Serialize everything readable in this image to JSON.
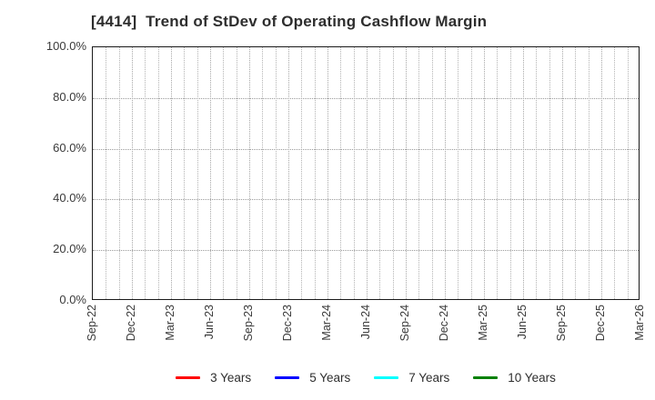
{
  "title": "[4414]  Trend of StDev of Operating Cashflow Margin",
  "chart_data": {
    "type": "line",
    "title": "[4414]  Trend of StDev of Operating Cashflow Margin",
    "xlabel": "",
    "ylabel": "",
    "ylim": [
      0,
      100
    ],
    "y_unit": "%",
    "y_ticks": [
      {
        "value": 0,
        "label": "0.0%"
      },
      {
        "value": 20,
        "label": "20.0%"
      },
      {
        "value": 40,
        "label": "40.0%"
      },
      {
        "value": 60,
        "label": "60.0%"
      },
      {
        "value": 80,
        "label": "80.0%"
      },
      {
        "value": 100,
        "label": "100.0%"
      }
    ],
    "x_tick_labels": [
      "Sep-22",
      "Dec-22",
      "Mar-23",
      "Jun-23",
      "Sep-23",
      "Dec-23",
      "Mar-24",
      "Jun-24",
      "Sep-24",
      "Dec-24",
      "Mar-25",
      "Jun-25",
      "Sep-25",
      "Dec-25",
      "Mar-26"
    ],
    "x_minor_gridlines": "monthly",
    "months_per_tick": 3,
    "grid": "dotted",
    "legend_position": "bottom",
    "series": [
      {
        "name": "3 Years",
        "color": "#ff0000",
        "values": []
      },
      {
        "name": "5 Years",
        "color": "#0000ff",
        "values": []
      },
      {
        "name": "7 Years",
        "color": "#00ffff",
        "values": []
      },
      {
        "name": "10 Years",
        "color": "#008000",
        "values": []
      }
    ]
  },
  "colors": {
    "plot_border": "#1a1a1a",
    "grid_major": "#9a9a9a",
    "grid_minor": "#b4b4b4",
    "title_text": "#2e2e2e",
    "tick_text": "#3a3a3a",
    "background": "#ffffff"
  }
}
